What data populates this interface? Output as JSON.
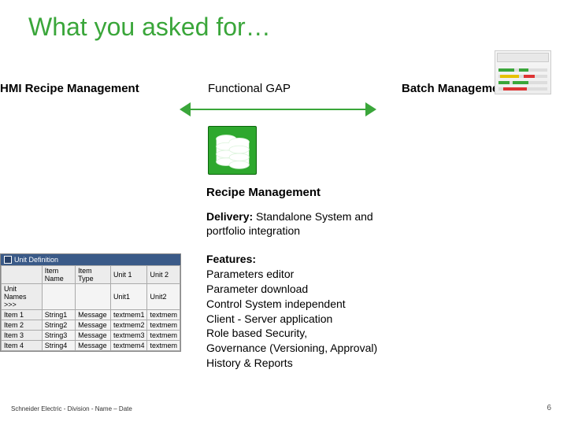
{
  "title": "What you asked for…",
  "labels": {
    "hmi": "HMI Recipe Management",
    "functional_gap": "Functional GAP",
    "batch": "Batch Management"
  },
  "recipe_sub": "Recipe Management",
  "delivery": {
    "label": "Delivery:",
    "text": " Standalone System and portfolio integration"
  },
  "features": {
    "label": "Features:",
    "items": [
      "Parameters editor",
      "Parameter download",
      "Control System independent",
      "Client - Server application",
      "Role based Security,",
      "Governance (Versioning, Approval)",
      "History & Reports"
    ]
  },
  "footer": {
    "left": "Schneider Electric - Division - Name – Date",
    "page": "6"
  },
  "colors": {
    "accent": "#3aa63a"
  },
  "unit_table": {
    "title": "Unit Definition",
    "headers": [
      "",
      "Item Name",
      "Item Type",
      "Unit 1",
      "Unit 2"
    ],
    "row_labels": "Unit Names >>>",
    "row0": [
      "",
      "",
      "Unit1",
      "Unit2"
    ],
    "rows": [
      [
        "Item 1",
        "String1",
        "Message",
        "textmem1",
        "textmem"
      ],
      [
        "Item 2",
        "String2",
        "Message",
        "textmem2",
        "textmem"
      ],
      [
        "Item 3",
        "String3",
        "Message",
        "textmem3",
        "textmem"
      ],
      [
        "Item 4",
        "String4",
        "Message",
        "textmem4",
        "textmem"
      ]
    ]
  },
  "batch_thumb": {
    "tracks": [
      {
        "segs": [
          {
            "l": 4,
            "w": 20,
            "c": "s-g"
          },
          {
            "l": 30,
            "w": 12,
            "c": "s-g"
          }
        ]
      },
      {
        "segs": [
          {
            "l": 6,
            "w": 24,
            "c": "s-y"
          },
          {
            "l": 36,
            "w": 14,
            "c": "s-r"
          }
        ]
      },
      {
        "segs": [
          {
            "l": 4,
            "w": 14,
            "c": "s-g"
          },
          {
            "l": 22,
            "w": 20,
            "c": "s-g"
          }
        ]
      },
      {
        "segs": [
          {
            "l": 10,
            "w": 30,
            "c": "s-r"
          }
        ]
      }
    ]
  }
}
